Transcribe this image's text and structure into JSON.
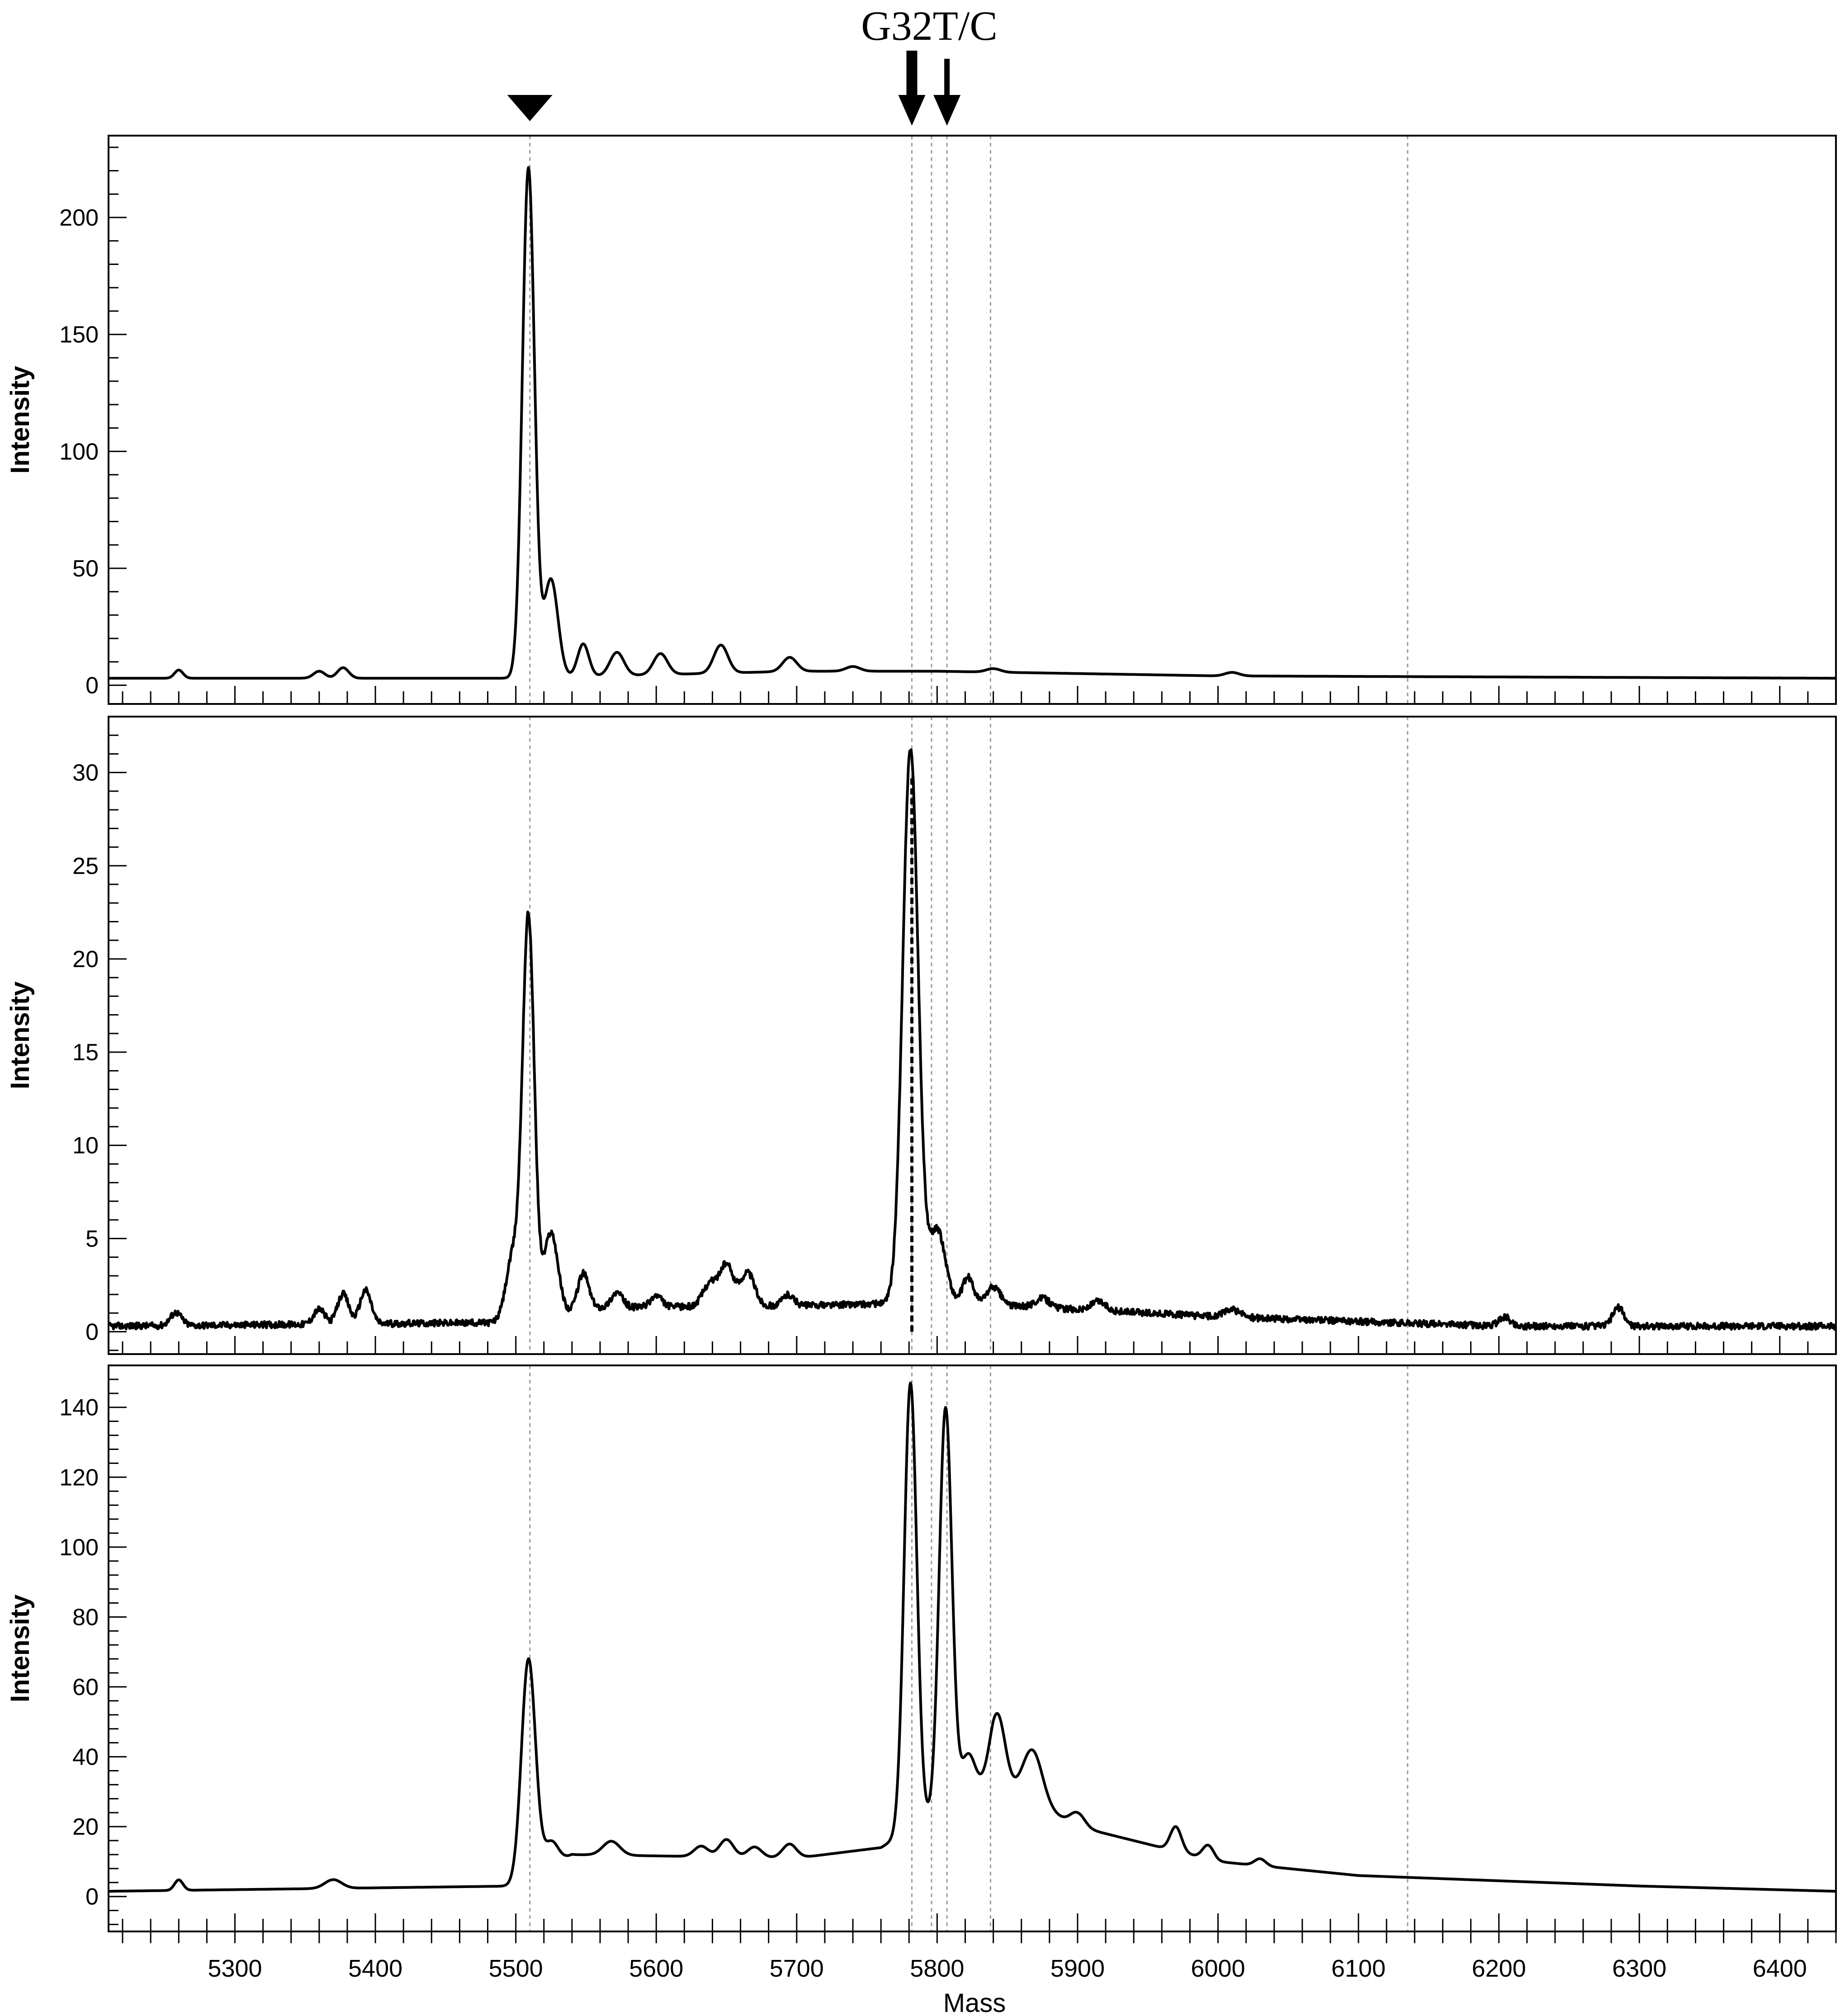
{
  "figure": {
    "annotation_label": "G32T/C",
    "markers": [
      {
        "name": "triangle-marker",
        "x": 5510
      },
      {
        "name": "thick-arrow-marker",
        "x": 5782
      },
      {
        "name": "thin-arrow-marker",
        "x": 5807
      }
    ]
  },
  "chart_data": [
    {
      "type": "line",
      "panel": "top",
      "ylabel": "Intensity",
      "xlim": [
        5210,
        6440
      ],
      "ylim": [
        -8,
        235
      ],
      "y_ticks": [
        0,
        50,
        100,
        150,
        200
      ],
      "y_tick_labels": [
        "0",
        "50",
        "100",
        "150",
        "200"
      ],
      "show_x_tick_labels": false,
      "reference_lines": [
        5510,
        5782,
        5796,
        5807,
        5838,
        6135
      ],
      "highlight_line": null,
      "series": [
        {
          "baseline": [
            [
              5210,
              3
            ],
            [
              5500,
              3
            ],
            [
              5700,
              6
            ],
            [
              5800,
              6
            ],
            [
              5900,
              5
            ],
            [
              6000,
              4
            ],
            [
              6440,
              3
            ]
          ],
          "peaks": [
            [
              5260,
              3.5,
              3
            ],
            [
              5360,
              3,
              4
            ],
            [
              5377,
              4.5,
              4
            ],
            [
              5509,
              218,
              4.3
            ],
            [
              5525,
              42,
              5
            ],
            [
              5548,
              14,
              4
            ],
            [
              5572,
              10,
              5
            ],
            [
              5603,
              9,
              5
            ],
            [
              5646,
              12,
              5
            ],
            [
              5695,
              6,
              5
            ],
            [
              5740,
              2,
              5
            ],
            [
              5840,
              1.5,
              5
            ],
            [
              6010,
              1.5,
              5
            ]
          ]
        }
      ]
    },
    {
      "type": "line",
      "panel": "middle",
      "ylabel": "Intensity",
      "xlim": [
        5210,
        6440
      ],
      "ylim": [
        -1.2,
        33
      ],
      "y_ticks": [
        0,
        5,
        10,
        15,
        20,
        25,
        30
      ],
      "y_tick_labels": [
        "0",
        "5",
        "10",
        "15",
        "20",
        "25",
        "30"
      ],
      "show_x_tick_labels": false,
      "reference_lines": [
        5510,
        5782,
        5796,
        5807,
        5838,
        6135
      ],
      "highlight_line": 5782,
      "series": [
        {
          "baseline": [
            [
              5210,
              0.3
            ],
            [
              5500,
              0.5
            ],
            [
              5560,
              1.3
            ],
            [
              5700,
              1.4
            ],
            [
              5760,
              1.5
            ],
            [
              5850,
              1.4
            ],
            [
              6000,
              0.8
            ],
            [
              6200,
              0.3
            ],
            [
              6440,
              0.3
            ]
          ],
          "peaks": [
            [
              5258,
              0.7,
              4
            ],
            [
              5360,
              0.8,
              4
            ],
            [
              5377,
              1.6,
              4
            ],
            [
              5393,
              1.8,
              4
            ],
            [
              5498,
              3.5,
              5
            ],
            [
              5509,
              21.5,
              4.2
            ],
            [
              5525,
              4.5,
              5
            ],
            [
              5548,
              2.0,
              4
            ],
            [
              5572,
              0.8,
              4
            ],
            [
              5600,
              0.6,
              4
            ],
            [
              5638,
              1.2,
              5
            ],
            [
              5650,
              2.2,
              5
            ],
            [
              5665,
              1.8,
              5
            ],
            [
              5694,
              0.6,
              4
            ],
            [
              5781,
              29.8,
              5.5
            ],
            [
              5800,
              4.0,
              6
            ],
            [
              5822,
              1.5,
              4
            ],
            [
              5840,
              1.0,
              5
            ],
            [
              5875,
              0.5,
              5
            ],
            [
              5915,
              0.5,
              5
            ],
            [
              6010,
              0.4,
              6
            ],
            [
              6204,
              0.5,
              4
            ],
            [
              6285,
              1.0,
              4
            ]
          ],
          "noise": 0.35
        }
      ]
    },
    {
      "type": "line",
      "panel": "bottom",
      "ylabel": "Intensity",
      "xlabel": "Mass",
      "xlim": [
        5210,
        6440
      ],
      "ylim": [
        -10,
        152
      ],
      "y_ticks": [
        0,
        20,
        40,
        60,
        80,
        100,
        120,
        140
      ],
      "y_tick_labels": [
        "0",
        "20",
        "40",
        "60",
        "80",
        "100",
        "120",
        "140"
      ],
      "x_ticks": [
        5300,
        5400,
        5500,
        5600,
        5700,
        5800,
        5900,
        6000,
        6100,
        6200,
        6300,
        6400
      ],
      "x_tick_labels": [
        "5300",
        "5400",
        "5500",
        "5600",
        "5700",
        "5800",
        "5900",
        "6000",
        "6100",
        "6200",
        "6300",
        "6400"
      ],
      "show_x_tick_labels": true,
      "reference_lines": [
        5510,
        5782,
        5796,
        5807,
        5838,
        6135
      ],
      "highlight_line": null,
      "series": [
        {
          "baseline": [
            [
              5210,
              1.5
            ],
            [
              5500,
              3
            ],
            [
              5540,
              12
            ],
            [
              5700,
              11
            ],
            [
              5760,
              14
            ],
            [
              5840,
              33
            ],
            [
              5900,
              20
            ],
            [
              6000,
              10
            ],
            [
              6100,
              6
            ],
            [
              6300,
              3
            ],
            [
              6440,
              1.5
            ]
          ],
          "peaks": [
            [
              5260,
              3,
              3
            ],
            [
              5370,
              2.5,
              6
            ],
            [
              5509,
              63,
              5
            ],
            [
              5525,
              7,
              5
            ],
            [
              5568,
              4,
              6
            ],
            [
              5632,
              3,
              5
            ],
            [
              5650,
              5,
              5
            ],
            [
              5670,
              3,
              5
            ],
            [
              5695,
              4,
              5
            ],
            [
              5781,
              128,
              4.5
            ],
            [
              5806,
              115,
              4.5
            ],
            [
              5822,
              12,
              5
            ],
            [
              5843,
              20,
              5.5
            ],
            [
              5868,
              15,
              7
            ],
            [
              5900,
              4,
              5
            ],
            [
              5970,
              7,
              4
            ],
            [
              5993,
              4,
              4
            ],
            [
              6030,
              2,
              4
            ]
          ]
        }
      ]
    }
  ]
}
